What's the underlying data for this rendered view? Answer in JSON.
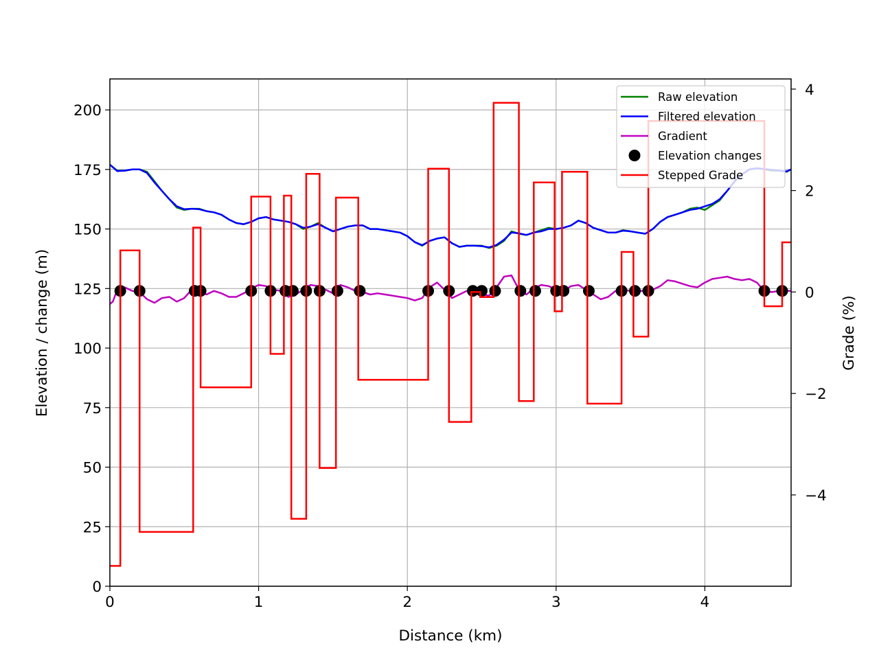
{
  "chart_data": {
    "type": "line",
    "title": "",
    "xlabel": "Distance (km)",
    "ylabel": "Elevation / change (m)",
    "y2label": "Grade (%)",
    "xlim": [
      0,
      4.58
    ],
    "ylim": [
      0,
      213
    ],
    "y2lim": [
      -5.8,
      4.2
    ],
    "x_ticks": [
      0,
      1,
      2,
      3,
      4
    ],
    "y_ticks": [
      0,
      25,
      50,
      75,
      100,
      125,
      150,
      175,
      200
    ],
    "y2_ticks": [
      -4,
      -2,
      0,
      2,
      4
    ],
    "grid": true,
    "legend_position": "top-right",
    "series": [
      {
        "name": "Raw elevation",
        "color": "#008000",
        "axis": "left",
        "x": [
          0,
          0.05,
          0.1,
          0.15,
          0.2,
          0.25,
          0.3,
          0.35,
          0.4,
          0.45,
          0.5,
          0.55,
          0.6,
          0.65,
          0.7,
          0.75,
          0.8,
          0.85,
          0.9,
          0.95,
          1.0,
          1.05,
          1.1,
          1.15,
          1.2,
          1.25,
          1.3,
          1.35,
          1.4,
          1.45,
          1.5,
          1.55,
          1.6,
          1.65,
          1.7,
          1.75,
          1.8,
          1.85,
          1.9,
          1.95,
          2.0,
          2.05,
          2.1,
          2.15,
          2.2,
          2.25,
          2.3,
          2.35,
          2.4,
          2.45,
          2.5,
          2.55,
          2.6,
          2.65,
          2.7,
          2.75,
          2.8,
          2.85,
          2.9,
          2.95,
          3.0,
          3.05,
          3.1,
          3.15,
          3.2,
          3.25,
          3.3,
          3.35,
          3.4,
          3.45,
          3.5,
          3.55,
          3.6,
          3.65,
          3.7,
          3.75,
          3.8,
          3.85,
          3.9,
          3.95,
          4.0,
          4.05,
          4.1,
          4.15,
          4.2,
          4.25,
          4.3,
          4.35,
          4.4,
          4.45,
          4.5,
          4.55,
          4.58
        ],
        "y": [
          177,
          174.5,
          174.5,
          175,
          175,
          174,
          170,
          166,
          162.5,
          159,
          158,
          158.5,
          158.5,
          157.5,
          157,
          156,
          154,
          152.5,
          152,
          153,
          154.5,
          155,
          154,
          153.5,
          153,
          152,
          150,
          151,
          152.5,
          150.5,
          149,
          150,
          151,
          151.5,
          151.5,
          150,
          150,
          149.5,
          149,
          148.5,
          147,
          144.5,
          143,
          145,
          146,
          146.5,
          144,
          142.5,
          143,
          143,
          143,
          142,
          143,
          145,
          149,
          148,
          147.5,
          148.5,
          149.5,
          150.5,
          150,
          150.5,
          151.5,
          153.5,
          152.5,
          150.5,
          149.5,
          148.5,
          148.5,
          149.5,
          149,
          148.5,
          148,
          150,
          153,
          155,
          156,
          157,
          158.5,
          159,
          158,
          160,
          162,
          166,
          170,
          173,
          175,
          175.5,
          175,
          174.5,
          174.5,
          174,
          175
        ]
      },
      {
        "name": "Filtered elevation",
        "color": "#0000ff",
        "axis": "left",
        "x": [
          0,
          0.05,
          0.1,
          0.15,
          0.2,
          0.25,
          0.3,
          0.35,
          0.4,
          0.45,
          0.5,
          0.55,
          0.6,
          0.65,
          0.7,
          0.75,
          0.8,
          0.85,
          0.9,
          0.95,
          1.0,
          1.05,
          1.1,
          1.15,
          1.2,
          1.25,
          1.3,
          1.35,
          1.4,
          1.45,
          1.5,
          1.55,
          1.6,
          1.65,
          1.7,
          1.75,
          1.8,
          1.85,
          1.9,
          1.95,
          2.0,
          2.05,
          2.1,
          2.15,
          2.2,
          2.25,
          2.3,
          2.35,
          2.4,
          2.45,
          2.5,
          2.55,
          2.6,
          2.65,
          2.7,
          2.75,
          2.8,
          2.85,
          2.9,
          2.95,
          3.0,
          3.05,
          3.1,
          3.15,
          3.2,
          3.25,
          3.3,
          3.35,
          3.4,
          3.45,
          3.5,
          3.55,
          3.6,
          3.65,
          3.7,
          3.75,
          3.8,
          3.85,
          3.9,
          3.95,
          4.0,
          4.05,
          4.1,
          4.15,
          4.2,
          4.25,
          4.3,
          4.35,
          4.4,
          4.45,
          4.5,
          4.55,
          4.58
        ],
        "y": [
          177,
          174.3,
          174.5,
          175,
          175,
          173.5,
          169.5,
          166,
          162.5,
          159.5,
          158.3,
          158.5,
          158.3,
          157.5,
          157,
          156,
          154,
          152.5,
          152,
          153,
          154.5,
          155,
          154,
          153.5,
          153,
          152,
          150.5,
          151,
          152,
          150.5,
          149,
          150,
          151,
          151.5,
          151.5,
          150,
          150,
          149.5,
          149,
          148.5,
          147,
          144.5,
          143.2,
          145,
          146,
          146.5,
          144,
          142.5,
          143,
          143,
          142.8,
          142.3,
          143.3,
          145.5,
          148.5,
          148.2,
          147.5,
          148.5,
          149,
          150,
          150,
          150.5,
          151.5,
          153.5,
          152.5,
          150.5,
          149.5,
          148.5,
          148.5,
          149.3,
          149,
          148.5,
          148,
          150,
          153,
          155,
          156,
          157,
          158,
          158.5,
          159.5,
          160.5,
          162.5,
          166,
          170,
          173,
          175,
          175.5,
          175.2,
          174.8,
          174.5,
          174.2,
          175
        ]
      },
      {
        "name": "Gradient",
        "color": "#bf00bf",
        "axis": "left",
        "x": [
          0,
          0.02,
          0.05,
          0.1,
          0.15,
          0.2,
          0.25,
          0.3,
          0.35,
          0.4,
          0.45,
          0.5,
          0.55,
          0.6,
          0.65,
          0.7,
          0.75,
          0.8,
          0.85,
          0.9,
          0.95,
          1.0,
          1.05,
          1.1,
          1.15,
          1.2,
          1.25,
          1.3,
          1.35,
          1.4,
          1.45,
          1.5,
          1.55,
          1.6,
          1.65,
          1.7,
          1.75,
          1.8,
          1.85,
          1.9,
          1.95,
          2.0,
          2.05,
          2.1,
          2.15,
          2.2,
          2.25,
          2.3,
          2.35,
          2.4,
          2.45,
          2.5,
          2.55,
          2.6,
          2.65,
          2.7,
          2.75,
          2.8,
          2.85,
          2.9,
          2.95,
          3.0,
          3.05,
          3.1,
          3.15,
          3.2,
          3.25,
          3.3,
          3.35,
          3.4,
          3.45,
          3.5,
          3.55,
          3.6,
          3.65,
          3.7,
          3.75,
          3.8,
          3.85,
          3.9,
          3.95,
          4.0,
          4.05,
          4.1,
          4.15,
          4.2,
          4.25,
          4.3,
          4.35,
          4.4,
          4.45,
          4.5,
          4.55,
          4.58
        ],
        "y": [
          118.5,
          119.5,
          124.5,
          125.5,
          124,
          123.5,
          120.5,
          119,
          121,
          121.5,
          119.5,
          121,
          124.5,
          124,
          122.5,
          124,
          123,
          121.5,
          121.5,
          123,
          125,
          126.5,
          126,
          124.5,
          124,
          121.5,
          122.5,
          124.5,
          126.5,
          126,
          124.5,
          123,
          126.5,
          125.5,
          124,
          123.5,
          122.5,
          123,
          122.5,
          122,
          121.5,
          121,
          120,
          121,
          125.5,
          127.5,
          124.5,
          121,
          122.5,
          124,
          124,
          122.5,
          122,
          125.5,
          130,
          130.5,
          124.5,
          122.5,
          125,
          126.5,
          126,
          124.5,
          124,
          126,
          126.5,
          124.5,
          122.5,
          120.5,
          121.5,
          124,
          124.5,
          124,
          124,
          124,
          124.5,
          126,
          128.5,
          128,
          127,
          126,
          125.5,
          127.5,
          129,
          129.5,
          130,
          129,
          128.5,
          129,
          127.5,
          124,
          123.5,
          124,
          124,
          124
        ]
      },
      {
        "name": "Elevation changes",
        "color": "#000000",
        "axis": "left",
        "x": [
          0.07,
          0.2,
          0.57,
          0.61,
          0.95,
          1.08,
          1.18,
          1.23,
          1.32,
          1.41,
          1.53,
          1.68,
          2.14,
          2.28,
          2.44,
          2.5,
          2.59,
          2.76,
          2.86,
          3.0,
          3.05,
          3.22,
          3.44,
          3.53,
          3.62,
          4.4,
          4.52
        ],
        "y": [
          124,
          124,
          124,
          124,
          124,
          124,
          124,
          124,
          124,
          124,
          124,
          124,
          124,
          124,
          124,
          124,
          124,
          124,
          124,
          124,
          124,
          124,
          124,
          124,
          124,
          124,
          124
        ]
      },
      {
        "name": "Stepped Grade",
        "color": "#ff0000",
        "axis": "right",
        "steps": [
          {
            "x0": 0,
            "x1": 0.07,
            "y": -5.4
          },
          {
            "x0": 0.07,
            "x1": 0.2,
            "y": 0.82
          },
          {
            "x0": 0.2,
            "x1": 0.56,
            "y": -4.73
          },
          {
            "x0": 0.56,
            "x1": 0.61,
            "y": 1.27
          },
          {
            "x0": 0.61,
            "x1": 0.95,
            "y": -1.88
          },
          {
            "x0": 0.95,
            "x1": 1.08,
            "y": 1.88
          },
          {
            "x0": 1.08,
            "x1": 1.17,
            "y": -1.22
          },
          {
            "x0": 1.17,
            "x1": 1.22,
            "y": 1.9
          },
          {
            "x0": 1.22,
            "x1": 1.32,
            "y": -4.47
          },
          {
            "x0": 1.32,
            "x1": 1.41,
            "y": 2.33
          },
          {
            "x0": 1.41,
            "x1": 1.52,
            "y": -3.47
          },
          {
            "x0": 1.52,
            "x1": 1.67,
            "y": 1.86
          },
          {
            "x0": 1.67,
            "x1": 2.14,
            "y": -1.73
          },
          {
            "x0": 2.14,
            "x1": 2.28,
            "y": 2.43
          },
          {
            "x0": 2.28,
            "x1": 2.43,
            "y": -2.56
          },
          {
            "x0": 2.43,
            "x1": 2.49,
            "y": 0
          },
          {
            "x0": 2.49,
            "x1": 2.58,
            "y": -0.1
          },
          {
            "x0": 2.58,
            "x1": 2.75,
            "y": 3.73
          },
          {
            "x0": 2.75,
            "x1": 2.85,
            "y": -2.15
          },
          {
            "x0": 2.85,
            "x1": 2.99,
            "y": 2.16
          },
          {
            "x0": 2.99,
            "x1": 3.04,
            "y": -0.38
          },
          {
            "x0": 3.04,
            "x1": 3.21,
            "y": 2.37
          },
          {
            "x0": 3.21,
            "x1": 3.44,
            "y": -2.2
          },
          {
            "x0": 3.44,
            "x1": 3.52,
            "y": 0.79
          },
          {
            "x0": 3.52,
            "x1": 3.62,
            "y": -0.88
          },
          {
            "x0": 3.62,
            "x1": 4.4,
            "y": 3.37
          },
          {
            "x0": 4.4,
            "x1": 4.52,
            "y": -0.28
          },
          {
            "x0": 4.52,
            "x1": 4.58,
            "y": 0.98
          }
        ]
      }
    ]
  }
}
